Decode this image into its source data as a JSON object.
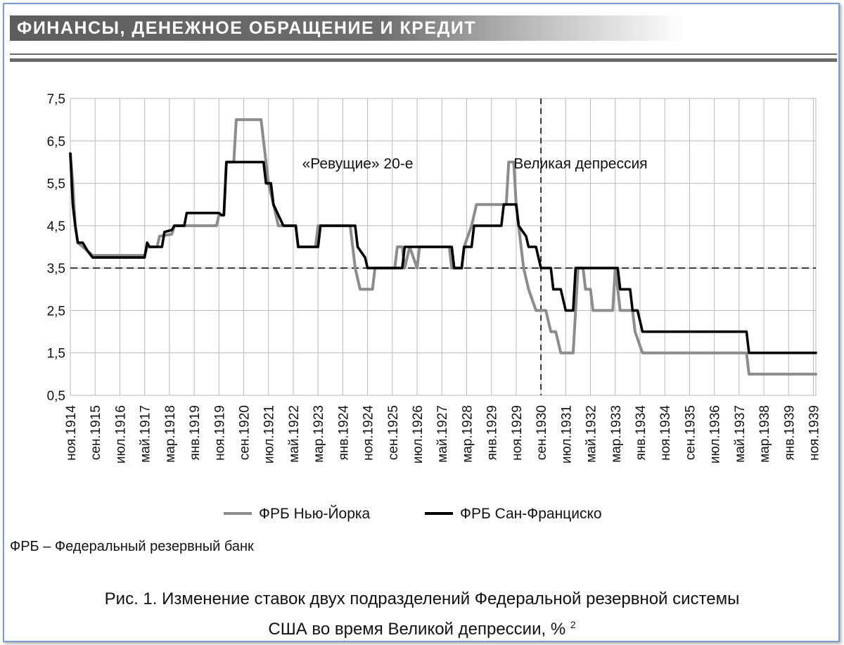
{
  "header": {
    "title": "ФИНАНСЫ, ДЕНЕЖНОЕ ОБРАЩЕНИЕ И КРЕДИТ"
  },
  "footnote": "ФРБ – Федеральный резервный банк",
  "caption": {
    "line1": "Рис. 1. Изменение ставок двух подразделений Федеральной резервной системы",
    "line2": "США во время Великой депрессии, %",
    "superscript": "2"
  },
  "chart_data": {
    "type": "line",
    "ylim": [
      0.5,
      7.5
    ],
    "yticks": [
      "0,5",
      "1,5",
      "2,5",
      "3,5",
      "4,5",
      "5,5",
      "6,5",
      "7,5"
    ],
    "ytick_values": [
      0.5,
      1.5,
      2.5,
      3.5,
      4.5,
      5.5,
      6.5,
      7.5
    ],
    "xlim": [
      "1914-11",
      "1939-12"
    ],
    "xticks": [
      "ноя.1914",
      "сен.1915",
      "июл.1916",
      "май.1917",
      "мар.1918",
      "янв.1919",
      "ноя.1919",
      "сен.1920",
      "июл.1921",
      "май.1922",
      "мар.1923",
      "янв.1924",
      "ноя.1924",
      "сен.1925",
      "июл.1926",
      "май.1927",
      "мар.1928",
      "янв.1929",
      "ноя.1929",
      "сен.1930",
      "июл.1931",
      "май.1932",
      "мар.1933",
      "янв.1934",
      "ноя.1934",
      "сен.1935",
      "июл.1936",
      "май.1937",
      "мар.1938",
      "янв.1939",
      "ноя.1939"
    ],
    "xtick_dates": [
      "1914-11",
      "1915-09",
      "1916-07",
      "1917-05",
      "1918-03",
      "1919-01",
      "1919-11",
      "1920-09",
      "1921-07",
      "1922-05",
      "1923-03",
      "1924-01",
      "1924-11",
      "1925-09",
      "1926-07",
      "1927-05",
      "1928-03",
      "1929-01",
      "1929-11",
      "1930-09",
      "1931-07",
      "1932-05",
      "1933-03",
      "1934-01",
      "1934-11",
      "1935-09",
      "1936-07",
      "1937-05",
      "1938-03",
      "1939-01",
      "1939-11"
    ],
    "grid": true,
    "reference_line": {
      "y": 3.5,
      "style": "dashed"
    },
    "event_line": {
      "x": "1930-09",
      "style": "dashed"
    },
    "annotations": [
      {
        "text": "«Ревущие» 20-е",
        "x": "1924-07",
        "y": 5.85
      },
      {
        "text": "Великая депрессия",
        "x": "1932-01",
        "y": 5.85
      }
    ],
    "legend_position": "bottom",
    "colors": {
      "ny": "#8c8c8c",
      "sf": "#000000",
      "grid": "#b9b9b9"
    },
    "series": [
      {
        "name": "ФРБ Нью-Йорка",
        "color": "#8c8c8c",
        "points": [
          [
            "1914-11",
            6.2
          ],
          [
            "1914-12",
            5.5
          ],
          [
            "1915-01",
            4.5
          ],
          [
            "1915-02",
            4.1
          ],
          [
            "1915-04",
            4.0
          ],
          [
            "1915-06",
            3.9
          ],
          [
            "1915-08",
            3.8
          ],
          [
            "1917-05",
            3.8
          ],
          [
            "1917-06",
            4.0
          ],
          [
            "1917-10",
            4.0
          ],
          [
            "1917-11",
            4.25
          ],
          [
            "1918-04",
            4.3
          ],
          [
            "1918-05",
            4.5
          ],
          [
            "1919-10",
            4.5
          ],
          [
            "1919-11",
            4.75
          ],
          [
            "1920-01",
            4.75
          ],
          [
            "1920-02",
            6.0
          ],
          [
            "1920-05",
            6.0
          ],
          [
            "1920-06",
            7.0
          ],
          [
            "1921-04",
            7.0
          ],
          [
            "1921-05",
            6.5
          ],
          [
            "1921-06",
            6.0
          ],
          [
            "1921-07",
            5.5
          ],
          [
            "1921-09",
            5.0
          ],
          [
            "1921-11",
            4.5
          ],
          [
            "1922-06",
            4.5
          ],
          [
            "1922-07",
            4.0
          ],
          [
            "1923-02",
            4.0
          ],
          [
            "1923-03",
            4.5
          ],
          [
            "1924-04",
            4.5
          ],
          [
            "1924-05",
            4.0
          ],
          [
            "1924-06",
            3.5
          ],
          [
            "1924-08",
            3.0
          ],
          [
            "1925-01",
            3.0
          ],
          [
            "1925-02",
            3.5
          ],
          [
            "1925-10",
            3.5
          ],
          [
            "1925-11",
            4.0
          ],
          [
            "1926-01",
            4.0
          ],
          [
            "1926-02",
            3.5
          ],
          [
            "1926-04",
            4.0
          ],
          [
            "1926-07",
            3.5
          ],
          [
            "1926-08",
            4.0
          ],
          [
            "1927-08",
            4.0
          ],
          [
            "1927-09",
            3.5
          ],
          [
            "1928-01",
            3.5
          ],
          [
            "1928-02",
            4.0
          ],
          [
            "1928-05",
            4.5
          ],
          [
            "1928-07",
            5.0
          ],
          [
            "1929-07",
            5.0
          ],
          [
            "1929-08",
            6.0
          ],
          [
            "1929-10",
            6.0
          ],
          [
            "1929-11",
            5.0
          ],
          [
            "1929-12",
            4.5
          ],
          [
            "1930-01",
            4.0
          ],
          [
            "1930-02",
            3.5
          ],
          [
            "1930-04",
            3.0
          ],
          [
            "1930-07",
            2.5
          ],
          [
            "1930-11",
            2.5
          ],
          [
            "1931-01",
            2.0
          ],
          [
            "1931-03",
            2.0
          ],
          [
            "1931-05",
            1.5
          ],
          [
            "1931-10",
            1.5
          ],
          [
            "1931-11",
            2.5
          ],
          [
            "1931-12",
            3.5
          ],
          [
            "1932-02",
            3.5
          ],
          [
            "1932-03",
            3.0
          ],
          [
            "1932-05",
            3.0
          ],
          [
            "1932-06",
            2.5
          ],
          [
            "1933-02",
            2.5
          ],
          [
            "1933-03",
            3.5
          ],
          [
            "1933-05",
            2.5
          ],
          [
            "1933-10",
            2.5
          ],
          [
            "1933-11",
            2.0
          ],
          [
            "1934-02",
            1.5
          ],
          [
            "1937-08",
            1.5
          ],
          [
            "1937-09",
            1.0
          ],
          [
            "1939-12",
            1.0
          ]
        ]
      },
      {
        "name": "ФРБ Сан-Франциско",
        "color": "#000000",
        "points": [
          [
            "1914-11",
            6.2
          ],
          [
            "1914-12",
            5.0
          ],
          [
            "1915-01",
            4.5
          ],
          [
            "1915-02",
            4.1
          ],
          [
            "1915-04",
            4.1
          ],
          [
            "1915-05",
            4.0
          ],
          [
            "1915-06",
            3.9
          ],
          [
            "1915-08",
            3.75
          ],
          [
            "1917-05",
            3.75
          ],
          [
            "1917-06",
            4.1
          ],
          [
            "1917-07",
            4.0
          ],
          [
            "1917-12",
            4.0
          ],
          [
            "1918-01",
            4.35
          ],
          [
            "1918-04",
            4.4
          ],
          [
            "1918-05",
            4.5
          ],
          [
            "1918-09",
            4.5
          ],
          [
            "1918-10",
            4.8
          ],
          [
            "1919-11",
            4.8
          ],
          [
            "1919-12",
            4.75
          ],
          [
            "1920-01",
            4.75
          ],
          [
            "1920-02",
            6.0
          ],
          [
            "1921-05",
            6.0
          ],
          [
            "1921-06",
            5.5
          ],
          [
            "1921-08",
            5.5
          ],
          [
            "1921-09",
            5.0
          ],
          [
            "1921-11",
            4.75
          ],
          [
            "1922-01",
            4.5
          ],
          [
            "1922-06",
            4.5
          ],
          [
            "1922-07",
            4.0
          ],
          [
            "1923-03",
            4.0
          ],
          [
            "1923-04",
            4.5
          ],
          [
            "1924-06",
            4.5
          ],
          [
            "1924-07",
            4.0
          ],
          [
            "1924-10",
            3.75
          ],
          [
            "1924-11",
            3.5
          ],
          [
            "1926-01",
            3.5
          ],
          [
            "1926-02",
            4.0
          ],
          [
            "1927-09",
            4.0
          ],
          [
            "1927-10",
            3.5
          ],
          [
            "1928-01",
            3.5
          ],
          [
            "1928-02",
            4.0
          ],
          [
            "1928-05",
            4.0
          ],
          [
            "1928-06",
            4.5
          ],
          [
            "1929-05",
            4.5
          ],
          [
            "1929-06",
            5.0
          ],
          [
            "1929-11",
            5.0
          ],
          [
            "1929-12",
            4.5
          ],
          [
            "1930-03",
            4.25
          ],
          [
            "1930-04",
            4.0
          ],
          [
            "1930-07",
            4.0
          ],
          [
            "1930-08",
            3.75
          ],
          [
            "1930-09",
            3.5
          ],
          [
            "1931-01",
            3.5
          ],
          [
            "1931-02",
            3.0
          ],
          [
            "1931-05",
            3.0
          ],
          [
            "1931-06",
            2.75
          ],
          [
            "1931-07",
            2.5
          ],
          [
            "1931-10",
            2.5
          ],
          [
            "1931-11",
            3.5
          ],
          [
            "1933-04",
            3.5
          ],
          [
            "1933-05",
            3.0
          ],
          [
            "1933-09",
            3.0
          ],
          [
            "1933-10",
            2.5
          ],
          [
            "1933-12",
            2.5
          ],
          [
            "1934-01",
            2.25
          ],
          [
            "1934-02",
            2.0
          ],
          [
            "1937-08",
            2.0
          ],
          [
            "1937-09",
            1.5
          ],
          [
            "1939-12",
            1.5
          ]
        ]
      }
    ]
  }
}
